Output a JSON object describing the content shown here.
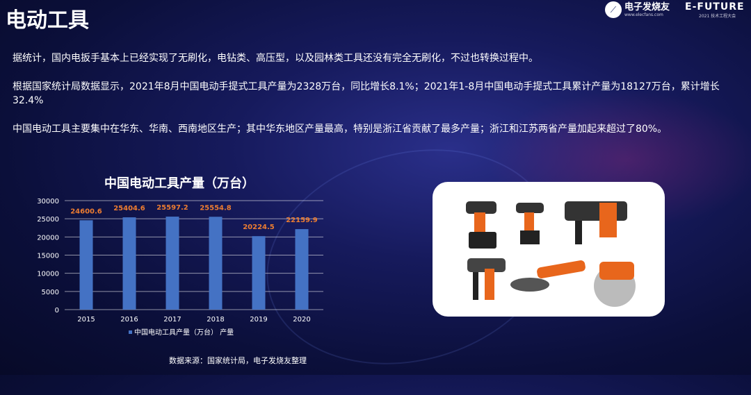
{
  "title": "电动工具",
  "logos": {
    "elecfans_name": "电子发烧友",
    "elecfans_url": "www.elecfans.com",
    "efuture_name": "E-FUTURE",
    "efuture_sub": "2021 技术工程大会"
  },
  "paragraphs": [
    "据统计，国内电扳手基本上已经实现了无刷化，电钻类、高压型，以及园林类工具还没有完全无刷化，不过也转换过程中。",
    "根据国家统计局数据显示，2021年8月中国电动手提式工具产量为2328万台，同比增长8.1%；2021年1-8月中国电动手提式工具累计产量为18127万台，累计增长32.4%",
    "中国电动工具主要集中在华东、华南、西南地区生产；其中华东地区产量最高，特别是浙江省贡献了最多产量；浙江和江苏两省产量加起来超过了80%。"
  ],
  "chart_data": {
    "type": "bar",
    "title": "中国电动工具产量（万台）",
    "categories": [
      "2015",
      "2016",
      "2017",
      "2018",
      "2019",
      "2020"
    ],
    "series": [
      {
        "name": "中国电动工具产量（万台） 产量",
        "values": [
          24600.6,
          25404.6,
          25597.2,
          25554.8,
          20224.5,
          22159.9
        ]
      }
    ],
    "data_labels": [
      "24600.6",
      "25404.6",
      "25597.2",
      "25554.8",
      "20224.5",
      "22159.9"
    ],
    "yticks": [
      "0",
      "5000",
      "10000",
      "15000",
      "20000",
      "25000",
      "30000"
    ],
    "ylim": [
      0,
      30000
    ],
    "grid": true,
    "legend": "bottom",
    "bar_color": "#4472c4",
    "label_color": "#ed7d31"
  },
  "source": "数据来源：国家统计局，电子发烧友整理"
}
